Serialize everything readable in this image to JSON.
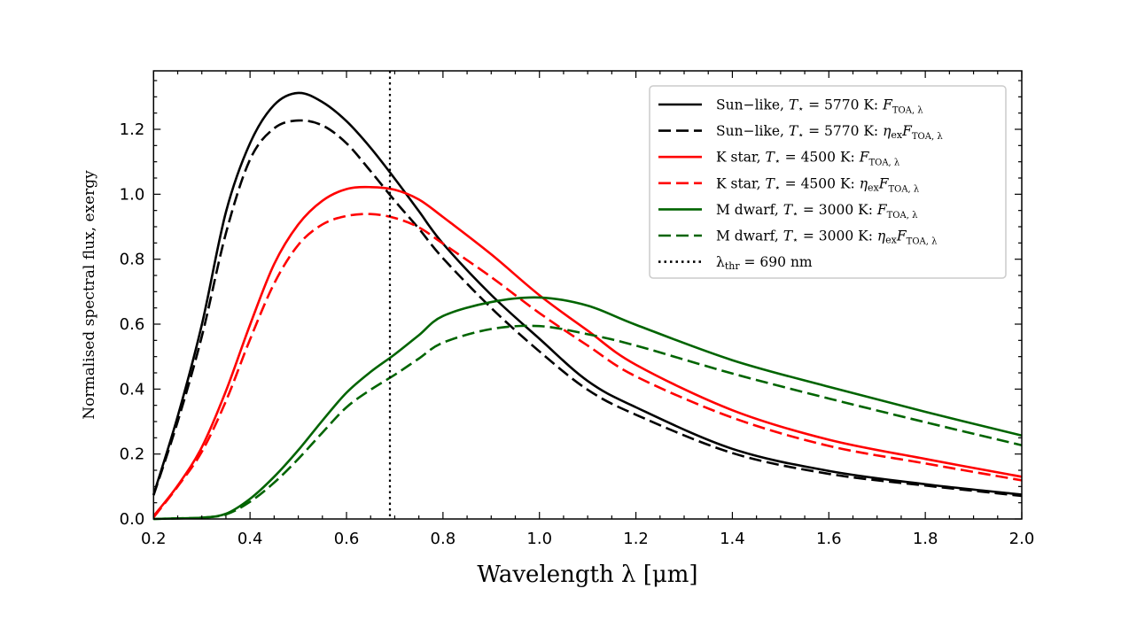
{
  "chart_data": {
    "type": "line",
    "title": "",
    "xlabel": "Wavelength λ [μm]",
    "ylabel": "Normalised spectral flux, exergy",
    "xlim": [
      0.2,
      2.0
    ],
    "ylim": [
      0.0,
      1.38
    ],
    "xticks": [
      "0.2",
      "0.4",
      "0.6",
      "0.8",
      "1.0",
      "1.2",
      "1.4",
      "1.6",
      "1.8",
      "2.0"
    ],
    "yticks": [
      "0.0",
      "0.2",
      "0.4",
      "0.6",
      "0.8",
      "1.0",
      "1.2"
    ],
    "grid": false,
    "legend_position": "top-right",
    "x": [
      0.2,
      0.25,
      0.3,
      0.35,
      0.4,
      0.45,
      0.5,
      0.55,
      0.6,
      0.65,
      0.7,
      0.75,
      0.8,
      0.9,
      1.0,
      1.1,
      1.2,
      1.4,
      1.6,
      1.8,
      2.0
    ],
    "series": [
      {
        "name": "Sun−like, T⋆ = 5770 K: F_TOA,λ",
        "color": "#000000",
        "style": "solid",
        "values": [
          0.075,
          0.316,
          0.598,
          0.945,
          1.157,
          1.275,
          1.312,
          1.284,
          1.225,
          1.143,
          1.048,
          0.948,
          0.848,
          0.69,
          0.555,
          0.425,
          0.344,
          0.216,
          0.148,
          0.107,
          0.075
        ]
      },
      {
        "name": "Sun−like, T⋆ = 5770 K: η_ex F_TOA,λ",
        "color": "#000000",
        "style": "dashed",
        "values": [
          0.073,
          0.3,
          0.562,
          0.88,
          1.107,
          1.203,
          1.227,
          1.212,
          1.157,
          1.071,
          0.98,
          0.894,
          0.803,
          0.65,
          0.516,
          0.398,
          0.321,
          0.203,
          0.139,
          0.103,
          0.071
        ]
      },
      {
        "name": "K star, T⋆ = 4500 K: F_TOA,λ",
        "color": "#ff0000",
        "style": "solid",
        "values": [
          0.009,
          0.103,
          0.221,
          0.394,
          0.598,
          0.785,
          0.907,
          0.98,
          1.016,
          1.022,
          1.014,
          0.984,
          0.93,
          0.815,
          0.689,
          0.58,
          0.475,
          0.335,
          0.244,
          0.185,
          0.13
        ]
      },
      {
        "name": "K star, T⋆ = 4500 K: η_ex F_TOA,λ",
        "color": "#ff0000",
        "style": "dashed",
        "values": [
          0.005,
          0.1,
          0.207,
          0.363,
          0.553,
          0.725,
          0.844,
          0.907,
          0.933,
          0.939,
          0.927,
          0.898,
          0.848,
          0.745,
          0.634,
          0.534,
          0.439,
          0.312,
          0.225,
          0.171,
          0.119
        ]
      },
      {
        "name": "M dwarf, T⋆ = 3000 K: F_TOA,λ",
        "color": "#006400",
        "style": "solid",
        "values": [
          0.0,
          0.002,
          0.004,
          0.016,
          0.062,
          0.13,
          0.212,
          0.303,
          0.389,
          0.453,
          0.507,
          0.566,
          0.625,
          0.668,
          0.682,
          0.657,
          0.598,
          0.489,
          0.407,
          0.33,
          0.257
        ]
      },
      {
        "name": "M dwarf, T⋆ = 3000 K: η_ex F_TOA,λ",
        "color": "#006400",
        "style": "dashed",
        "values": [
          0.0,
          0.002,
          0.004,
          0.014,
          0.053,
          0.112,
          0.185,
          0.266,
          0.344,
          0.398,
          0.444,
          0.494,
          0.543,
          0.585,
          0.594,
          0.569,
          0.534,
          0.448,
          0.371,
          0.298,
          0.227
        ]
      }
    ],
    "vline": {
      "name": "λthr = 690 nm",
      "x": 0.69,
      "color": "#000000",
      "style": "dotted"
    },
    "legend": [
      {
        "name": "Sun−like, ",
        "t": "T",
        "tsub": "⋆",
        "eq": " = 5770 K: ",
        "eta": "",
        "etasub": "",
        "q": "F",
        "qsub": "TOA, λ",
        "color": "#000000",
        "style": "solid"
      },
      {
        "name": "Sun−like, ",
        "t": "T",
        "tsub": "⋆",
        "eq": " = 5770 K: ",
        "eta": "η",
        "etasub": "ex",
        "q": "F",
        "qsub": "TOA, λ",
        "color": "#000000",
        "style": "dashed"
      },
      {
        "name": "K star, ",
        "t": "T",
        "tsub": "⋆",
        "eq": " = 4500 K: ",
        "eta": "",
        "etasub": "",
        "q": "F",
        "qsub": "TOA, λ",
        "color": "#ff0000",
        "style": "solid"
      },
      {
        "name": "K star, ",
        "t": "T",
        "tsub": "⋆",
        "eq": " = 4500 K: ",
        "eta": "η",
        "etasub": "ex",
        "q": "F",
        "qsub": "TOA, λ",
        "color": "#ff0000",
        "style": "dashed"
      },
      {
        "name": "M dwarf, ",
        "t": "T",
        "tsub": "⋆",
        "eq": " = 3000 K: ",
        "eta": "",
        "etasub": "",
        "q": "F",
        "qsub": "TOA, λ",
        "color": "#006400",
        "style": "solid"
      },
      {
        "name": "M dwarf, ",
        "t": "T",
        "tsub": "⋆",
        "eq": " = 3000 K: ",
        "eta": "η",
        "etasub": "ex",
        "q": "F",
        "qsub": "TOA, λ",
        "color": "#006400",
        "style": "dashed"
      },
      {
        "name": "λ",
        "t": "",
        "tsub": "thr",
        "eq": " = 690 nm",
        "eta": "",
        "etasub": "",
        "q": "",
        "qsub": "",
        "color": "#000000",
        "style": "dotted"
      }
    ]
  }
}
